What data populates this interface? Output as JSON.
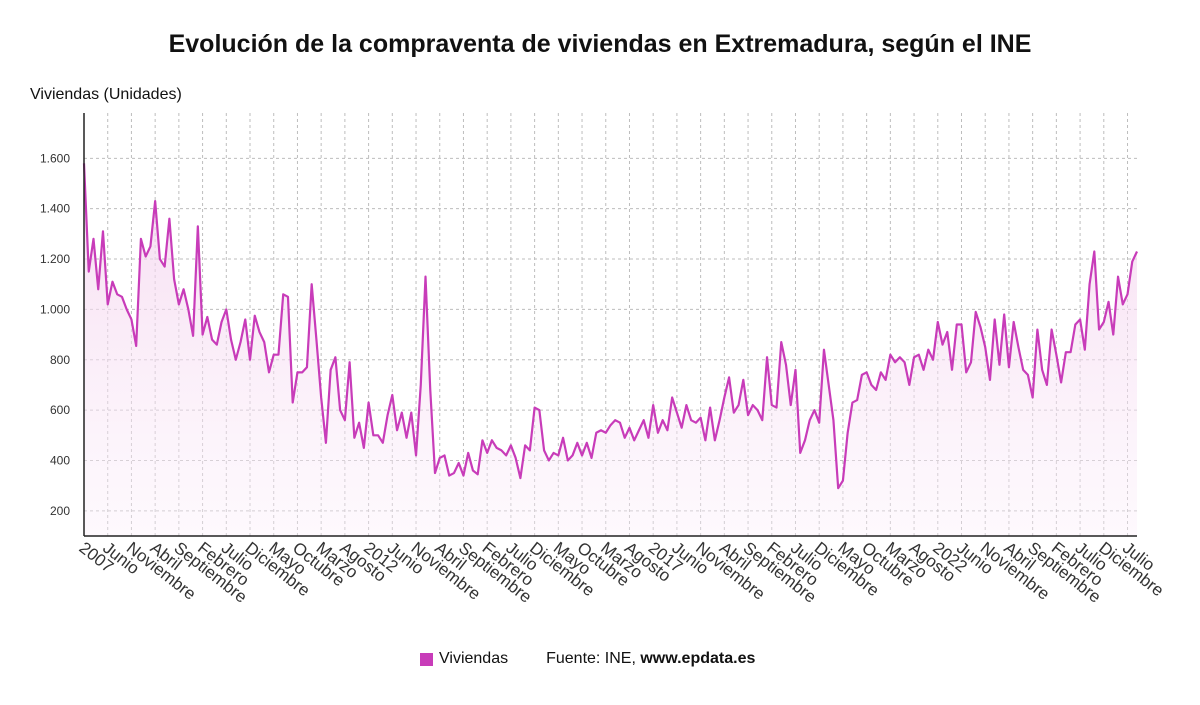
{
  "chart_data": {
    "type": "area",
    "title": "Evolución de la compraventa de viviendas en Extremadura, según el INE",
    "ylabel": "Viviendas (Unidades)",
    "xlabel": "",
    "ylim": [
      100,
      1780
    ],
    "yticks": [
      200,
      400,
      600,
      800,
      1000,
      1200,
      1400,
      1600
    ],
    "ytick_labels": [
      "200",
      "400",
      "600",
      "800",
      "1.000",
      "1.200",
      "1.400",
      "1.600"
    ],
    "grid": true,
    "legend_position": "bottom",
    "start": "2007-01",
    "x_tick_labels": [
      "2007",
      "Junio",
      "Noviembre",
      "Abril",
      "Septiembre",
      "Febrero",
      "Julio",
      "Diciembre",
      "Mayo",
      "Octubre",
      "Marzo",
      "Agosto",
      "2012",
      "Junio",
      "Noviembre",
      "Abril",
      "Septiembre",
      "Febrero",
      "Julio",
      "Diciembre",
      "Mayo",
      "Octubre",
      "Marzo",
      "Agosto",
      "2017",
      "Junio",
      "Noviembre",
      "Abril",
      "Septiembre",
      "Febrero",
      "Julio",
      "Diciembre",
      "Mayo",
      "Octubre",
      "Marzo",
      "Agosto",
      "2022",
      "Junio",
      "Noviembre",
      "Abril",
      "Septiembre",
      "Febrero",
      "Julio",
      "Diciembre",
      "Julio"
    ],
    "series": [
      {
        "name": "Viviendas",
        "color": "#c83cb9",
        "values": [
          1580,
          1150,
          1280,
          1080,
          1310,
          1020,
          1110,
          1060,
          1050,
          1000,
          960,
          855,
          1280,
          1210,
          1250,
          1430,
          1200,
          1170,
          1360,
          1120,
          1020,
          1080,
          1000,
          895,
          1330,
          900,
          970,
          880,
          860,
          950,
          1000,
          880,
          800,
          870,
          960,
          800,
          975,
          910,
          870,
          750,
          820,
          820,
          1060,
          1050,
          630,
          750,
          750,
          770,
          1100,
          880,
          650,
          470,
          760,
          810,
          600,
          560,
          790,
          490,
          550,
          450,
          630,
          500,
          500,
          470,
          580,
          660,
          520,
          590,
          490,
          590,
          420,
          700,
          1130,
          680,
          350,
          410,
          420,
          340,
          350,
          390,
          340,
          430,
          360,
          345,
          480,
          430,
          480,
          450,
          440,
          420,
          460,
          410,
          330,
          460,
          440,
          610,
          600,
          440,
          400,
          430,
          420,
          490,
          400,
          420,
          470,
          420,
          470,
          410,
          510,
          520,
          510,
          540,
          560,
          550,
          490,
          530,
          480,
          520,
          560,
          490,
          620,
          510,
          560,
          520,
          650,
          590,
          530,
          620,
          560,
          550,
          570,
          480,
          610,
          480,
          560,
          650,
          730,
          590,
          620,
          720,
          580,
          620,
          600,
          560,
          810,
          620,
          610,
          870,
          780,
          620,
          760,
          430,
          480,
          560,
          600,
          550,
          840,
          700,
          560,
          290,
          320,
          510,
          630,
          640,
          740,
          750,
          700,
          680,
          750,
          720,
          820,
          790,
          810,
          790,
          700,
          810,
          820,
          760,
          840,
          800,
          950,
          860,
          910,
          760,
          940,
          940,
          750,
          790,
          990,
          930,
          850,
          720,
          960,
          780,
          980,
          770,
          950,
          850,
          760,
          740,
          650,
          920,
          760,
          700,
          920,
          820,
          710,
          830,
          830,
          940,
          960,
          840,
          1100,
          1230,
          920,
          950,
          1030,
          900,
          1130,
          1020,
          1060,
          1190,
          1230
        ]
      }
    ]
  },
  "footer": {
    "legend_label": "Viviendas",
    "source_prefix": "Fuente: INE, ",
    "source_site": "www.epdata.es"
  }
}
